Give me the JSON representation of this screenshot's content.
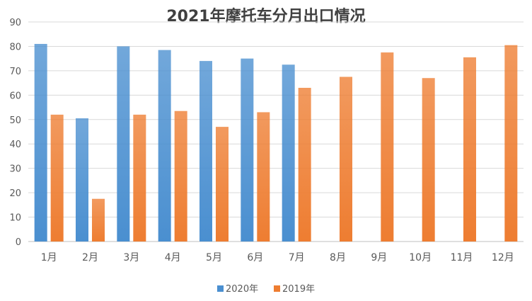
{
  "chart_data": {
    "type": "bar",
    "title": "2021年摩托车分月出口情况",
    "categories": [
      "1月",
      "2月",
      "3月",
      "4月",
      "5月",
      "6月",
      "7月",
      "8月",
      "9月",
      "10月",
      "11月",
      "12月"
    ],
    "series": [
      {
        "name": "2020年",
        "color": "#4a8fd0",
        "values": [
          81,
          50.5,
          80,
          78.5,
          74,
          75,
          72.5,
          null,
          null,
          null,
          null,
          null
        ]
      },
      {
        "name": "2019年",
        "color": "#ee7d31",
        "values": [
          52,
          17.5,
          52,
          53.5,
          47,
          53,
          63,
          67.5,
          77.5,
          67,
          75.5,
          80.5
        ]
      }
    ],
    "ylim": [
      0,
      90
    ],
    "yticks": [
      0,
      10,
      20,
      30,
      40,
      50,
      60,
      70,
      80,
      90
    ],
    "grid": true,
    "legend_position": "bottom"
  }
}
